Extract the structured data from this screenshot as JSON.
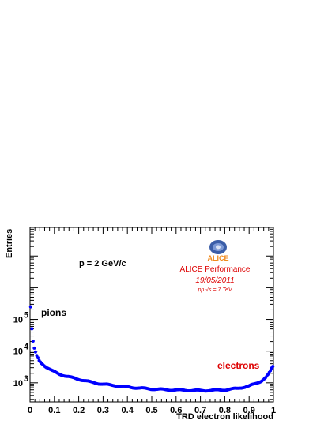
{
  "chart_data": {
    "type": "scatter",
    "xlabel": "TRD electron likelihood",
    "ylabel": "Entries",
    "xlim": [
      0,
      1
    ],
    "ylim": [
      250,
      80000000
    ],
    "yscale": "log",
    "x_ticks": [
      {
        "value": 0,
        "label": "0"
      },
      {
        "value": 0.1,
        "label": "0.1"
      },
      {
        "value": 0.2,
        "label": "0.2"
      },
      {
        "value": 0.3,
        "label": "0.3"
      },
      {
        "value": 0.4,
        "label": "0.4"
      },
      {
        "value": 0.5,
        "label": "0.5"
      },
      {
        "value": 0.6,
        "label": "0.6"
      },
      {
        "value": 0.7,
        "label": "0.7"
      },
      {
        "value": 0.8,
        "label": "0.8"
      },
      {
        "value": 0.9,
        "label": "0.9"
      },
      {
        "value": 1,
        "label": "1"
      }
    ],
    "y_ticks": [
      {
        "value": 1000,
        "base": "10",
        "exp": "3"
      },
      {
        "value": 10000,
        "base": "10",
        "exp": "4"
      },
      {
        "value": 100000,
        "base": "10",
        "exp": "5"
      }
    ],
    "marker_color": "#0000ff",
    "series": [
      {
        "x": [
          0.0025,
          0.0075,
          0.0125,
          0.0175,
          0.0225,
          0.0275,
          0.0325,
          0.0375,
          0.05,
          0.07,
          0.09,
          0.12,
          0.15,
          0.2,
          0.25,
          0.3,
          0.35,
          0.4,
          0.45,
          0.5,
          0.55,
          0.6,
          0.65,
          0.7,
          0.75,
          0.8,
          0.85,
          0.9,
          0.93,
          0.95,
          0.97,
          0.98,
          0.99,
          0.995
        ],
        "y": [
          250000,
          50000,
          20000,
          12000,
          9000,
          7000,
          6000,
          5000,
          4000,
          3000,
          2400,
          1900,
          1600,
          1300,
          1050,
          900,
          820,
          740,
          680,
          640,
          610,
          590,
          580,
          570,
          580,
          600,
          660,
          790,
          960,
          1150,
          1500,
          1900,
          2500,
          3200
        ]
      }
    ],
    "annotations": {
      "momentum": "p = 2 GeV/c",
      "pions": "pions",
      "electrons": "electrons",
      "logo_text": "ALICE",
      "performance": "ALICE Performance",
      "date": "19/05/2011",
      "energy": "pp √s = 7 TeV"
    },
    "colors": {
      "annotation_red": "#dd0000",
      "logo_orange": "#f08a1c",
      "logo_blue": "#3b5ea8"
    }
  }
}
